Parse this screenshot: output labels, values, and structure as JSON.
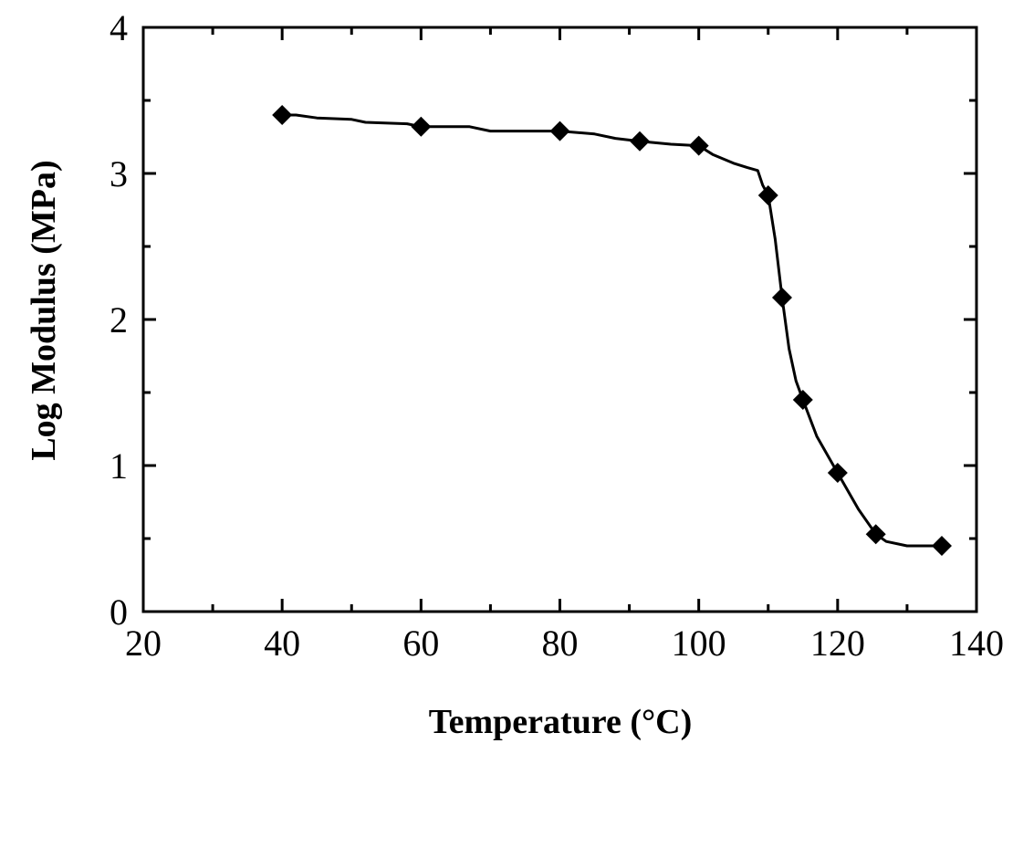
{
  "chart_data": {
    "type": "line",
    "title": "",
    "xlabel": "Temperature (°C)",
    "ylabel": "Log Modulus (MPa)",
    "xlim": [
      20,
      140
    ],
    "ylim": [
      0,
      4
    ],
    "x_ticks": [
      "20",
      "40",
      "60",
      "80",
      "100",
      "120",
      "140"
    ],
    "y_ticks": [
      "0",
      "1",
      "2",
      "3",
      "4"
    ],
    "grid": false,
    "legend": "none",
    "series": [
      {
        "marker": "diamond",
        "color": "#000000",
        "points": [
          {
            "x": 40,
            "y": 3.4
          },
          {
            "x": 60,
            "y": 3.32
          },
          {
            "x": 80,
            "y": 3.29
          },
          {
            "x": 91.5,
            "y": 3.22
          },
          {
            "x": 100,
            "y": 3.19
          },
          {
            "x": 110,
            "y": 2.85
          },
          {
            "x": 112,
            "y": 2.15
          },
          {
            "x": 115,
            "y": 1.45
          },
          {
            "x": 120,
            "y": 0.95
          },
          {
            "x": 125.5,
            "y": 0.53
          },
          {
            "x": 135,
            "y": 0.45
          }
        ],
        "curve": [
          {
            "x": 40,
            "y": 3.4
          },
          {
            "x": 42,
            "y": 3.4
          },
          {
            "x": 45,
            "y": 3.38
          },
          {
            "x": 50,
            "y": 3.37
          },
          {
            "x": 52,
            "y": 3.35
          },
          {
            "x": 58,
            "y": 3.34
          },
          {
            "x": 60,
            "y": 3.32
          },
          {
            "x": 67,
            "y": 3.32
          },
          {
            "x": 70,
            "y": 3.29
          },
          {
            "x": 80,
            "y": 3.29
          },
          {
            "x": 85,
            "y": 3.27
          },
          {
            "x": 88,
            "y": 3.24
          },
          {
            "x": 91.5,
            "y": 3.22
          },
          {
            "x": 96,
            "y": 3.2
          },
          {
            "x": 100,
            "y": 3.19
          },
          {
            "x": 102,
            "y": 3.13
          },
          {
            "x": 105,
            "y": 3.07
          },
          {
            "x": 107,
            "y": 3.04
          },
          {
            "x": 108.5,
            "y": 3.02
          },
          {
            "x": 109.2,
            "y": 2.92
          },
          {
            "x": 110,
            "y": 2.85
          },
          {
            "x": 111,
            "y": 2.55
          },
          {
            "x": 112,
            "y": 2.15
          },
          {
            "x": 113,
            "y": 1.8
          },
          {
            "x": 114,
            "y": 1.58
          },
          {
            "x": 115,
            "y": 1.45
          },
          {
            "x": 117,
            "y": 1.2
          },
          {
            "x": 120,
            "y": 0.95
          },
          {
            "x": 123,
            "y": 0.7
          },
          {
            "x": 125.5,
            "y": 0.53
          },
          {
            "x": 127,
            "y": 0.48
          },
          {
            "x": 130,
            "y": 0.45
          },
          {
            "x": 135,
            "y": 0.45
          }
        ]
      }
    ]
  }
}
